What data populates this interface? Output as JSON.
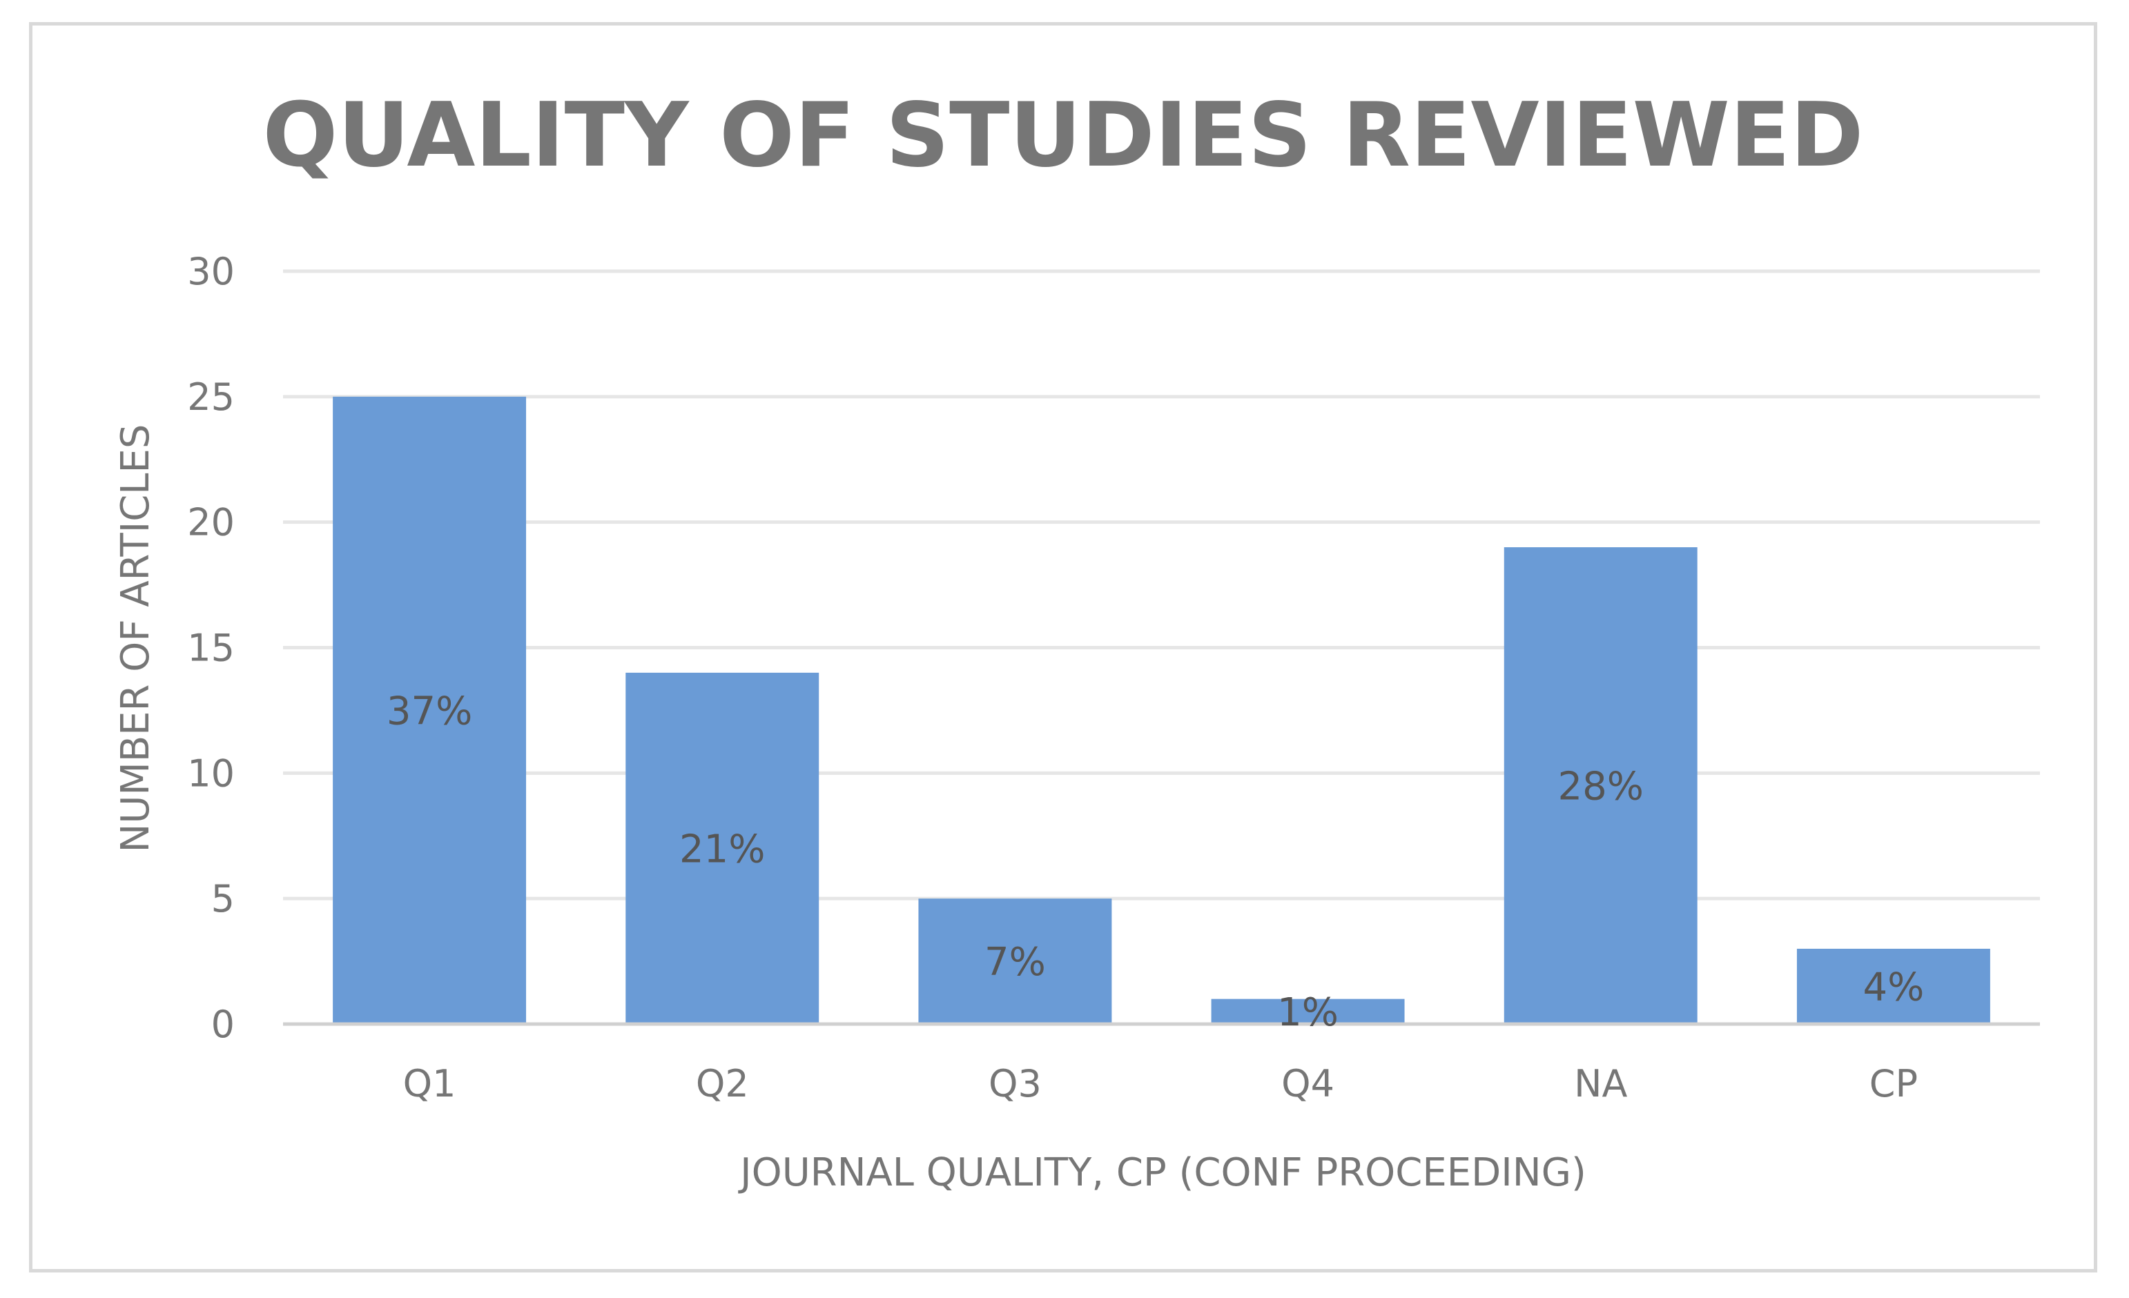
{
  "chart_data": {
    "type": "bar",
    "title": "QUALITY OF STUDIES REVIEWED",
    "xlabel": "JOURNAL QUALITY, CP (CONF PROCEEDING)",
    "ylabel": "NUMBER OF ARTICLES",
    "categories": [
      "Q1",
      "Q2",
      "Q3",
      "Q4",
      "NA",
      "CP"
    ],
    "values": [
      25,
      14,
      5,
      1,
      19,
      3
    ],
    "data_labels": [
      "37%",
      "21%",
      "7%",
      "1%",
      "28%",
      "4%"
    ],
    "ylim": [
      0,
      30
    ],
    "yticks": [
      0,
      5,
      10,
      15,
      20,
      25,
      30
    ],
    "grid": true,
    "legend": "none",
    "colors": {
      "bar": "#6a9bd6",
      "grid": "#e6e6e6",
      "axis": "#d0d0d0",
      "text": "#767676",
      "border": "#d9d9d9"
    }
  }
}
